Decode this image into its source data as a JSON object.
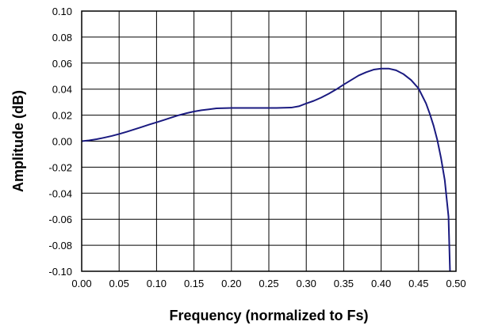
{
  "chart_data": {
    "type": "line",
    "xlabel": "Frequency (normalized to Fs)",
    "ylabel": "Amplitude (dB)",
    "xlim": [
      0.0,
      0.5
    ],
    "ylim": [
      -0.1,
      0.1
    ],
    "x_ticks": [
      "0.00",
      "0.05",
      "0.10",
      "0.15",
      "0.20",
      "0.25",
      "0.30",
      "0.35",
      "0.40",
      "0.45",
      "0.50"
    ],
    "y_ticks": [
      "-0.10",
      "-0.08",
      "-0.06",
      "-0.04",
      "-0.02",
      "0.00",
      "0.02",
      "0.04",
      "0.06",
      "0.08",
      "0.10"
    ],
    "grid": true,
    "line_color": "#1a1a80",
    "series": [
      {
        "x": [
          0.0,
          0.01,
          0.02,
          0.03,
          0.04,
          0.05,
          0.06,
          0.07,
          0.08,
          0.09,
          0.1,
          0.11,
          0.12,
          0.13,
          0.14,
          0.15,
          0.16,
          0.17,
          0.18,
          0.2,
          0.22,
          0.24,
          0.26,
          0.28,
          0.29,
          0.3,
          0.31,
          0.32,
          0.33,
          0.34,
          0.35,
          0.36,
          0.37,
          0.38,
          0.39,
          0.4,
          0.41,
          0.42,
          0.43,
          0.44,
          0.45,
          0.46,
          0.465,
          0.47,
          0.475,
          0.48,
          0.485,
          0.49,
          0.492
        ],
        "y": [
          0.0,
          0.0006,
          0.0015,
          0.0027,
          0.004,
          0.0055,
          0.0072,
          0.009,
          0.0108,
          0.0127,
          0.0145,
          0.0163,
          0.0182,
          0.02,
          0.0215,
          0.0228,
          0.0238,
          0.0245,
          0.0252,
          0.0255,
          0.0255,
          0.0255,
          0.0255,
          0.0258,
          0.0268,
          0.029,
          0.031,
          0.0335,
          0.0365,
          0.0398,
          0.0435,
          0.047,
          0.0505,
          0.053,
          0.055,
          0.0558,
          0.0558,
          0.0545,
          0.0515,
          0.047,
          0.0405,
          0.029,
          0.021,
          0.012,
          0.001,
          -0.013,
          -0.03,
          -0.058,
          -0.1
        ]
      }
    ]
  }
}
